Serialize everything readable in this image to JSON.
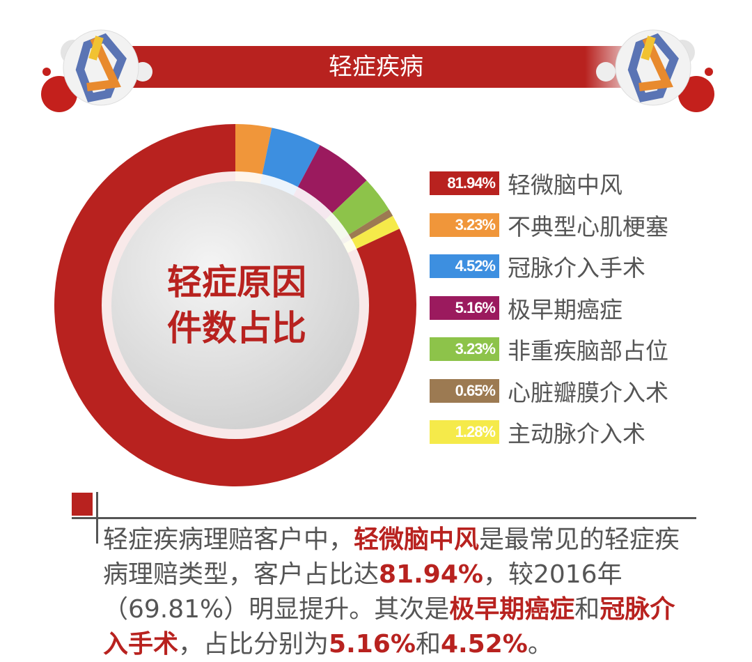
{
  "header": {
    "title": "轻症疾病"
  },
  "chart_data": {
    "type": "pie",
    "donut": true,
    "center_label": [
      "轻症原因",
      "件数占比"
    ],
    "start": "top",
    "direction": "clockwise",
    "legend_placement": "right",
    "slices": [
      {
        "label": "不典型心肌梗塞",
        "value": 3.23,
        "display": "3.23%",
        "color": "#f0963a"
      },
      {
        "label": "冠脉介入手术",
        "value": 4.52,
        "display": "4.52%",
        "color": "#3d8fe0"
      },
      {
        "label": "极早期癌症",
        "value": 5.16,
        "display": "5.16%",
        "color": "#9b1a5e"
      },
      {
        "label": "非重疾脑部占位",
        "value": 3.23,
        "display": "3.23%",
        "color": "#8dc34a"
      },
      {
        "label": "心脏瓣膜介入术",
        "value": 0.65,
        "display": "0.65%",
        "color": "#9c7a52"
      },
      {
        "label": "主动脉介入术",
        "value": 1.28,
        "display": "1.28%",
        "color": "#f5ea4a"
      },
      {
        "label": "轻微脑中风",
        "value": 81.94,
        "display": "81.94%",
        "color": "#b8221f"
      }
    ],
    "legend_order": [
      6,
      0,
      1,
      2,
      3,
      4,
      5
    ]
  },
  "paragraph": [
    {
      "t": "轻症疾病理赔客户中，",
      "h": false
    },
    {
      "t": "轻微脑中风",
      "h": true
    },
    {
      "t": "是最常见的轻症疾病理赔类型，客户占比达",
      "h": false
    },
    {
      "t": "81.94%",
      "h": true
    },
    {
      "t": "，较2016年（69.81%）明显提升。其次是",
      "h": false
    },
    {
      "t": "极早期癌症",
      "h": true
    },
    {
      "t": "和",
      "h": false
    },
    {
      "t": "冠脉介入手术",
      "h": true
    },
    {
      "t": "，占比分别为",
      "h": false
    },
    {
      "t": "5.16%",
      "h": true
    },
    {
      "t": "和",
      "h": false
    },
    {
      "t": "4.52%",
      "h": true
    },
    {
      "t": "。",
      "h": false
    }
  ]
}
